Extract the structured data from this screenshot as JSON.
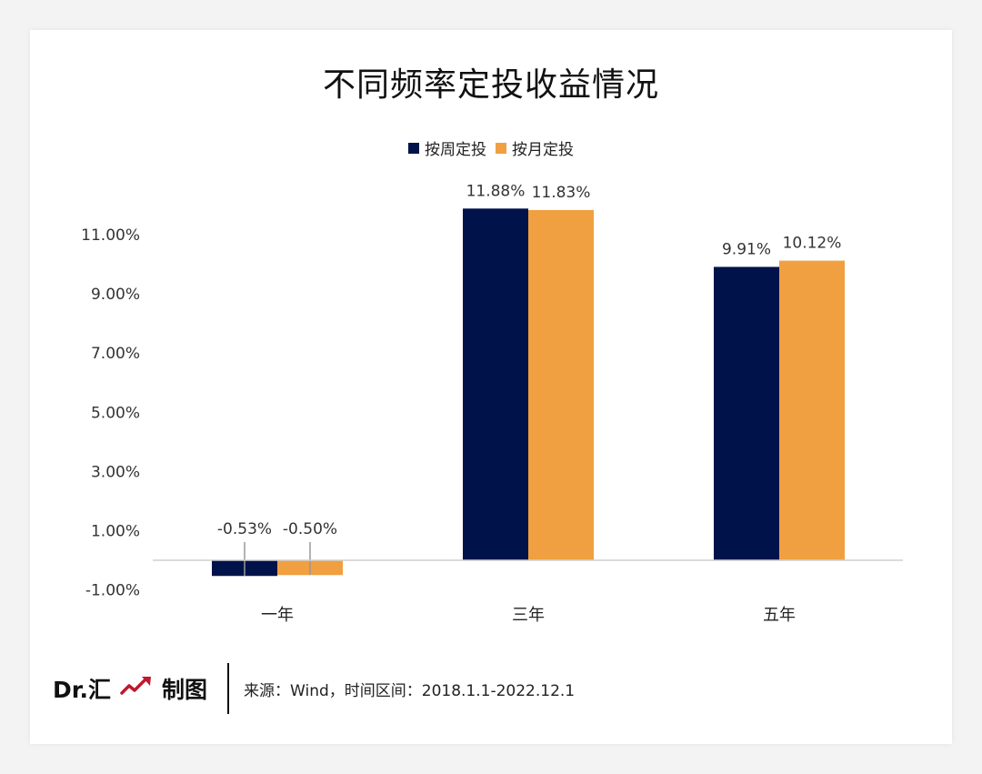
{
  "title": "不同频率定投收益情况",
  "legend": [
    {
      "name": "按周定投",
      "color": "#00124a"
    },
    {
      "name": "按月定投",
      "color": "#f0a040"
    }
  ],
  "footer": {
    "brand_name": "Dr.汇",
    "brand_suffix": "制图",
    "source": "来源：Wind，时间区间：2018.1.1-2022.12.1",
    "icon_color": "#c0182c"
  },
  "chart_data": {
    "type": "bar",
    "title": "不同频率定投收益情况",
    "categories": [
      "一年",
      "三年",
      "五年"
    ],
    "series": [
      {
        "name": "按周定投",
        "values": [
          -0.53,
          11.88,
          9.91
        ],
        "labels": [
          "-0.53%",
          "11.88%",
          "9.91%"
        ],
        "color": "#00124a"
      },
      {
        "name": "按月定投",
        "values": [
          -0.5,
          11.83,
          10.12
        ],
        "labels": [
          "-0.50%",
          "11.83%",
          "10.12%"
        ],
        "color": "#f0a040"
      }
    ],
    "yticks": [
      -1,
      1,
      3,
      5,
      7,
      9,
      11
    ],
    "ytick_labels": [
      "-1.00%",
      "1.00%",
      "3.00%",
      "5.00%",
      "7.00%",
      "9.00%",
      "11.00%"
    ],
    "legend_position": "top-center",
    "grid": false
  }
}
